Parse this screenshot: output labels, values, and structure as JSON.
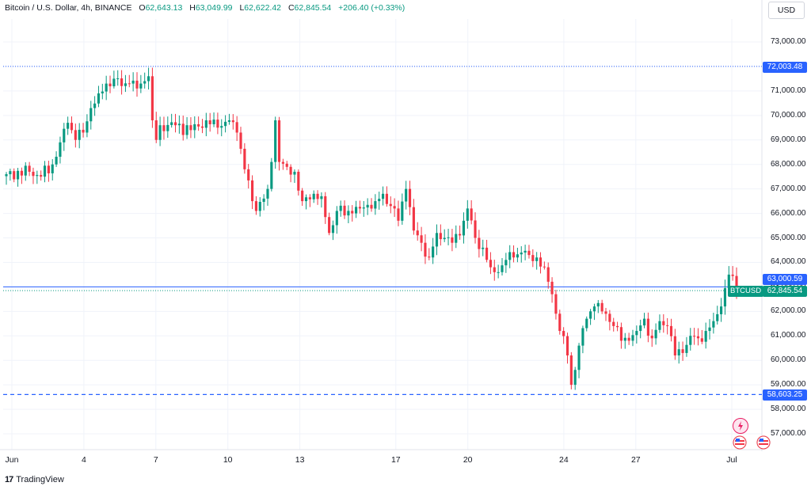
{
  "header": {
    "symbol": "Bitcoin / U.S. Dollar, 4h, BINANCE",
    "o_label": "O",
    "o_value": "62,643.13",
    "h_label": "H",
    "h_value": "63,049.99",
    "l_label": "L",
    "l_value": "62,622.42",
    "c_label": "C",
    "c_value": "62,845.54",
    "change": "+206.40 (+0.33%)"
  },
  "currency_button": "USD",
  "branding": {
    "mark": "17",
    "name": "TradingView"
  },
  "icons": [
    "flash-icon",
    "us-flag-icon",
    "us-flag-icon-secondary"
  ],
  "colors": {
    "up": "#089981",
    "down": "#f23645",
    "line": "#2962ff",
    "grid": "#f0f3fa"
  },
  "price_tags": {
    "level_high": "72,003.48",
    "level_mid": "63,000.59",
    "last_price": "62,845.54",
    "level_low": "58,603.25",
    "symbol": "BTCUSD"
  },
  "chart_data": {
    "type": "candlestick",
    "title": "Bitcoin / U.S. Dollar, 4h, BINANCE",
    "ylim": [
      56500,
      73500
    ],
    "y_ticks": [
      "73,000.00",
      "72,000.00",
      "71,000.00",
      "70,000.00",
      "69,000.00",
      "68,000.00",
      "67,000.00",
      "66,000.00",
      "65,000.00",
      "64,000.00",
      "63,000.00",
      "62,000.00",
      "61,000.00",
      "60,000.00",
      "59,000.00",
      "58,000.00",
      "57,000.00"
    ],
    "y_tick_values": [
      73000,
      72000,
      71000,
      70000,
      69000,
      68000,
      67000,
      66000,
      65000,
      64000,
      63000,
      62000,
      61000,
      60000,
      59000,
      58000,
      57000
    ],
    "x_ticks": [
      {
        "label": "Jun",
        "day": 1
      },
      {
        "label": "4",
        "day": 4
      },
      {
        "label": "7",
        "day": 7
      },
      {
        "label": "10",
        "day": 10
      },
      {
        "label": "13",
        "day": 13
      },
      {
        "label": "17",
        "day": 17
      },
      {
        "label": "20",
        "day": 20
      },
      {
        "label": "24",
        "day": 24
      },
      {
        "label": "27",
        "day": 27
      },
      {
        "label": "Jul",
        "day": 31
      }
    ],
    "horizontal_lines": [
      {
        "price": 72003.48,
        "style": "dotted"
      },
      {
        "price": 63000.59,
        "style": "solid"
      },
      {
        "price": 62845.54,
        "style": "dotted"
      },
      {
        "price": 58603.25,
        "style": "dashed"
      }
    ],
    "anchors": [
      [
        0,
        67600
      ],
      [
        6,
        67700
      ],
      [
        9,
        67500
      ],
      [
        12,
        68000
      ],
      [
        14,
        68900
      ],
      [
        16,
        69700
      ],
      [
        18,
        69000
      ],
      [
        20,
        69300
      ],
      [
        22,
        70300
      ],
      [
        24,
        70900
      ],
      [
        26,
        71300
      ],
      [
        28,
        71500
      ],
      [
        30,
        71200
      ],
      [
        32,
        71300
      ],
      [
        34,
        71100
      ],
      [
        36,
        71400
      ],
      [
        37,
        71600
      ],
      [
        38,
        69800
      ],
      [
        39,
        69000
      ],
      [
        40,
        69600
      ],
      [
        44,
        69600
      ],
      [
        48,
        69400
      ],
      [
        52,
        69800
      ],
      [
        55,
        69500
      ],
      [
        58,
        69800
      ],
      [
        60,
        69300
      ],
      [
        62,
        67800
      ],
      [
        64,
        66500
      ],
      [
        65,
        66100
      ],
      [
        68,
        67000
      ],
      [
        69,
        68100
      ],
      [
        70,
        69800
      ],
      [
        71,
        68100
      ],
      [
        73,
        67900
      ],
      [
        75,
        67700
      ],
      [
        77,
        66500
      ],
      [
        80,
        66800
      ],
      [
        82,
        66700
      ],
      [
        84,
        65200
      ],
      [
        86,
        66100
      ],
      [
        90,
        66000
      ],
      [
        92,
        66200
      ],
      [
        96,
        66500
      ],
      [
        98,
        66800
      ],
      [
        100,
        66300
      ],
      [
        102,
        65700
      ],
      [
        104,
        67000
      ],
      [
        106,
        65300
      ],
      [
        108,
        64800
      ],
      [
        110,
        64200
      ],
      [
        112,
        65200
      ],
      [
        114,
        65000
      ],
      [
        116,
        64800
      ],
      [
        118,
        65100
      ],
      [
        120,
        66200
      ],
      [
        122,
        65000
      ],
      [
        124,
        64600
      ],
      [
        126,
        63800
      ],
      [
        128,
        63600
      ],
      [
        130,
        64100
      ],
      [
        132,
        64200
      ],
      [
        134,
        64400
      ],
      [
        136,
        64300
      ],
      [
        138,
        64200
      ],
      [
        140,
        63800
      ],
      [
        142,
        62700
      ],
      [
        144,
        61200
      ],
      [
        146,
        60200
      ],
      [
        147,
        59000
      ],
      [
        149,
        60600
      ],
      [
        151,
        61700
      ],
      [
        153,
        62200
      ],
      [
        156,
        61900
      ],
      [
        158,
        61400
      ],
      [
        160,
        60800
      ],
      [
        162,
        60800
      ],
      [
        164,
        61200
      ],
      [
        166,
        61700
      ],
      [
        168,
        60900
      ],
      [
        170,
        61600
      ],
      [
        172,
        61400
      ],
      [
        174,
        60200
      ],
      [
        176,
        60300
      ],
      [
        178,
        61000
      ],
      [
        180,
        60900
      ],
      [
        182,
        61200
      ],
      [
        184,
        61600
      ],
      [
        186,
        62200
      ],
      [
        188,
        63500
      ],
      [
        190,
        62845.54
      ]
    ]
  }
}
